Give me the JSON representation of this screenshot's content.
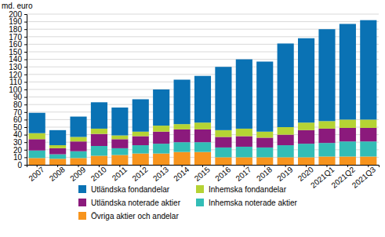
{
  "chart_data": {
    "type": "bar",
    "stacked": true,
    "grid": true,
    "y_label": "md. euro",
    "categories": [
      "2007",
      "2008",
      "2009",
      "2010",
      "2011",
      "2012",
      "2013",
      "2014",
      "2015",
      "2016",
      "2017",
      "2018",
      "2019",
      "2020",
      "2021Q1",
      "2021Q2",
      "2021Q3"
    ],
    "ylim": [
      0,
      200
    ],
    "yticks": [
      0,
      10,
      20,
      30,
      40,
      50,
      60,
      70,
      80,
      90,
      100,
      110,
      120,
      130,
      140,
      150,
      160,
      170,
      180,
      190,
      200
    ],
    "series": [
      {
        "name": "Övriga aktier och andelar",
        "color": "#f7941d",
        "values": [
          9,
          8,
          9,
          12,
          13,
          15,
          15,
          17,
          17,
          10,
          10,
          10,
          10,
          10,
          11,
          11,
          11
        ]
      },
      {
        "name": "Inhemska noterade aktier",
        "color": "#33bdb6",
        "values": [
          10,
          6,
          9,
          13,
          9,
          11,
          13,
          13,
          13,
          13,
          14,
          13,
          16,
          18,
          18,
          20,
          20
        ]
      },
      {
        "name": "Utländska noterade aktier",
        "color": "#8b1a7c",
        "values": [
          15,
          8,
          13,
          16,
          12,
          12,
          16,
          17,
          17,
          14,
          14,
          13,
          14,
          18,
          19,
          18,
          18
        ]
      },
      {
        "name": "Inhemska fondandelar",
        "color": "#b5d334",
        "values": [
          8,
          4,
          6,
          7,
          5,
          6,
          8,
          7,
          9,
          9,
          10,
          8,
          10,
          10,
          10,
          11,
          11
        ]
      },
      {
        "name": "Utländska fondandelar",
        "color": "#0a72b4",
        "values": [
          27,
          20,
          27,
          35,
          37,
          43,
          48,
          59,
          62,
          84,
          92,
          93,
          111,
          112,
          122,
          127,
          132
        ]
      }
    ]
  }
}
